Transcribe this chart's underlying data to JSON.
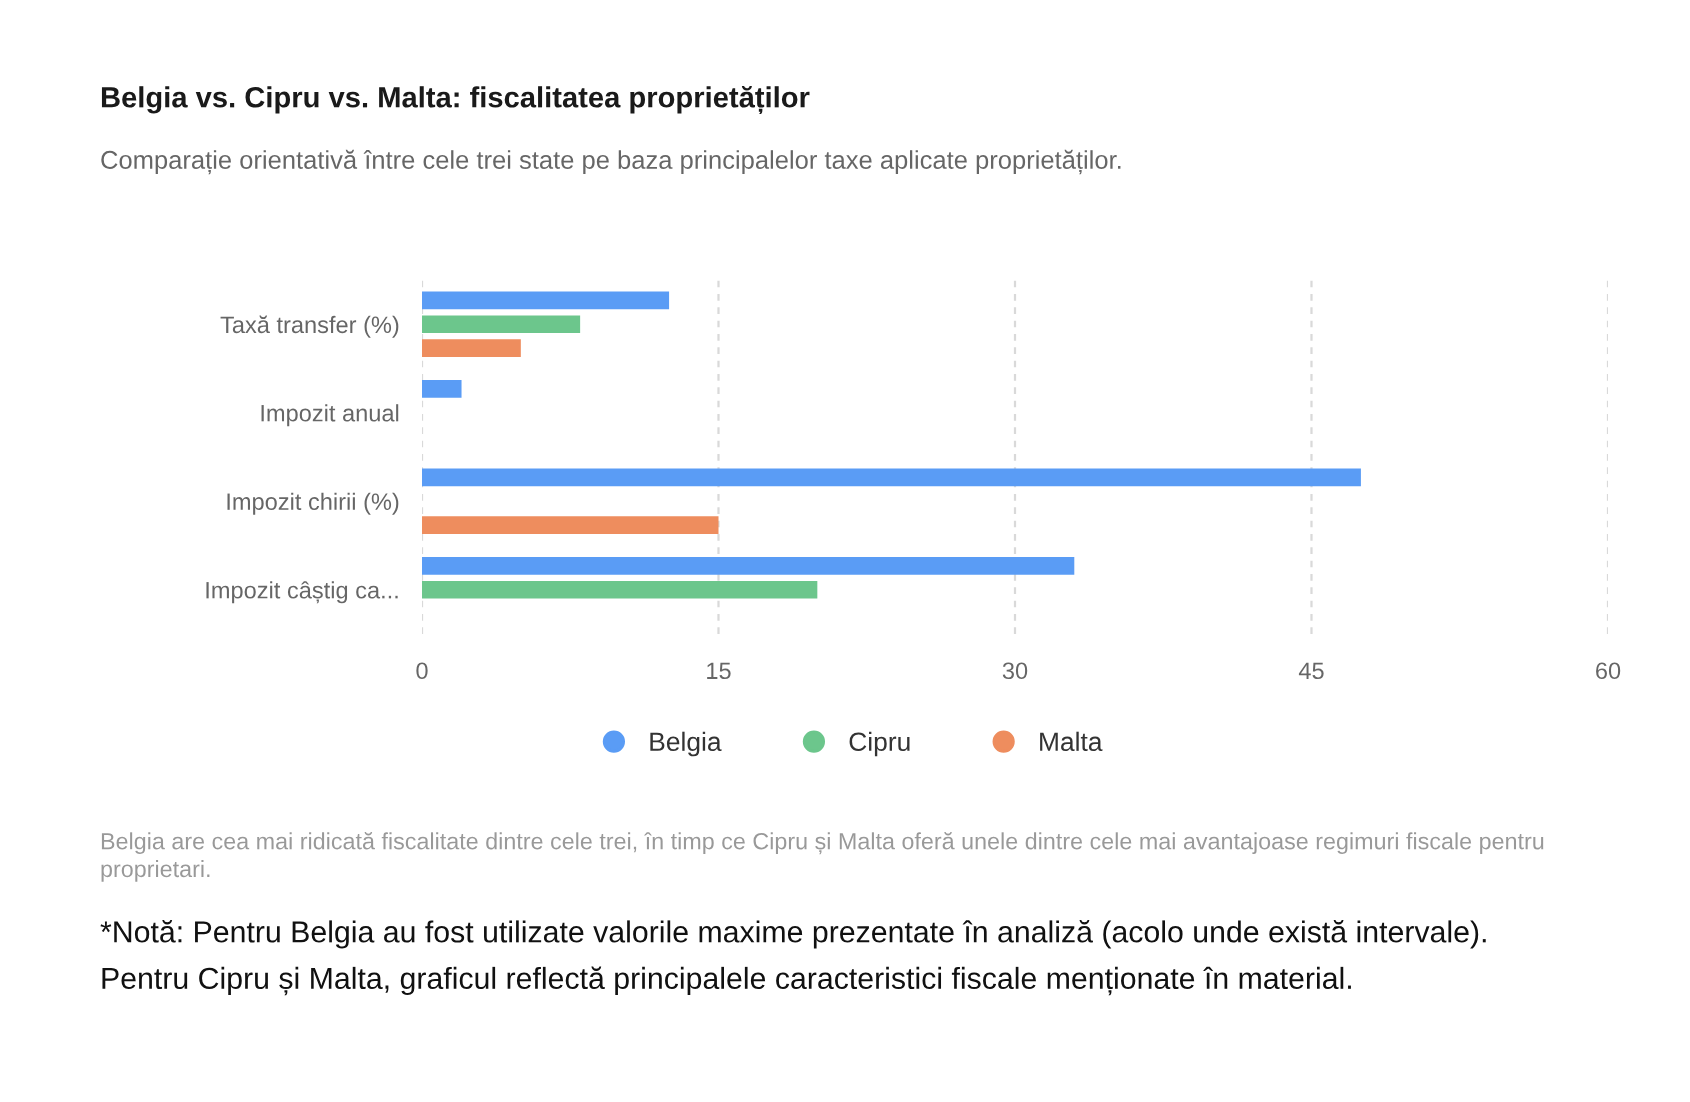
{
  "chart_data": {
    "type": "bar",
    "orientation": "horizontal",
    "title": "Belgia vs. Cipru vs. Malta: fiscalitatea proprietăților",
    "subtitle": "Comparație orientativă între cele trei state pe baza principalelor taxe aplicate proprietăților.",
    "categories": [
      "Taxă transfer (%)",
      "Impozit anual",
      "Impozit chirii (%)",
      "Impozit câștig ca..."
    ],
    "series": [
      {
        "name": "Belgia",
        "color": "#5a9cf5",
        "values": [
          12.5,
          2,
          47.5,
          33
        ]
      },
      {
        "name": "Cipru",
        "color": "#6cc68c",
        "values": [
          8,
          null,
          null,
          20
        ]
      },
      {
        "name": "Malta",
        "color": "#ee8d5e",
        "values": [
          5,
          null,
          15,
          null
        ]
      }
    ],
    "xlim": [
      0,
      60
    ],
    "xticks": [
      0,
      15,
      30,
      45,
      60
    ],
    "grid": "x",
    "legend": "bottom",
    "annotations": [
      "Belgia are cea mai ridicată fiscalitate dintre cele trei, în timp ce Cipru și Malta oferă unele dintre cele mai avantajoase regimuri fiscale pentru proprietari.",
      "*Notă: Pentru Belgia au fost utilizate valorile maxime prezentate în analiză (acolo unde există intervale). Pentru Cipru și Malta, graficul reflectă principalele caracteristici fiscale menționate în material."
    ]
  }
}
